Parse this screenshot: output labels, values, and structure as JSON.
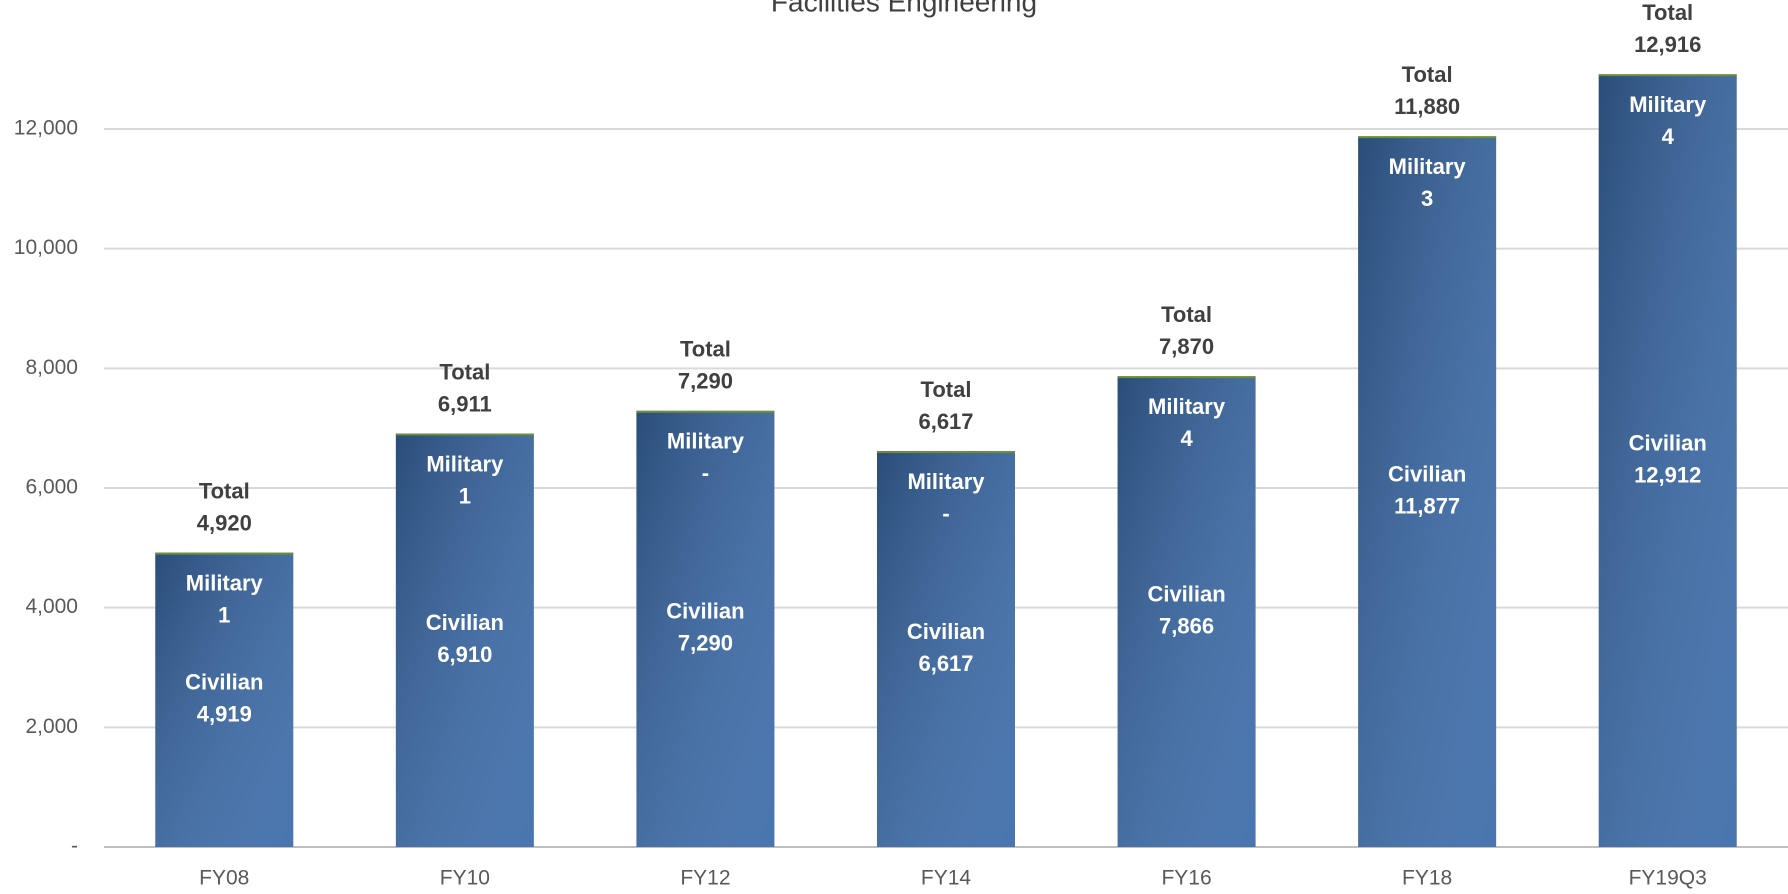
{
  "chart_data": {
    "type": "stacked_bar",
    "title": "Facilities Engineering",
    "categories": [
      "FY08",
      "FY10",
      "FY12",
      "FY14",
      "FY16",
      "FY18",
      "FY19Q3"
    ],
    "series": [
      {
        "name": "Civilian",
        "color": "#3a6aa8",
        "values": [
          4919,
          6910,
          7290,
          6617,
          7866,
          11877,
          12912
        ],
        "value_labels": [
          "4,919",
          "6,910",
          "7,290",
          "6,617",
          "7,866",
          "11,877",
          "12,912"
        ]
      },
      {
        "name": "Military",
        "color": "#6b8e3a",
        "values": [
          1,
          1,
          0,
          0,
          4,
          3,
          4
        ],
        "value_labels": [
          "1",
          "1",
          "-",
          "-",
          "4",
          "3",
          "4"
        ]
      }
    ],
    "totals": {
      "label": "Total",
      "values": [
        4920,
        6911,
        7290,
        6617,
        7870,
        11880,
        12916
      ],
      "value_labels": [
        "4,920",
        "6,911",
        "7,290",
        "6,617",
        "7,870",
        "11,880",
        "12,916"
      ]
    },
    "ylim": [
      0,
      14000
    ],
    "yticks": [
      {
        "value": 0,
        "label": "-"
      },
      {
        "value": 2000,
        "label": "2,000"
      },
      {
        "value": 4000,
        "label": "4,000"
      },
      {
        "value": 6000,
        "label": "6,000"
      },
      {
        "value": 8000,
        "label": "8,000"
      },
      {
        "value": 10000,
        "label": "10,000"
      },
      {
        "value": 12000,
        "label": "12,000"
      }
    ],
    "grid": true
  }
}
